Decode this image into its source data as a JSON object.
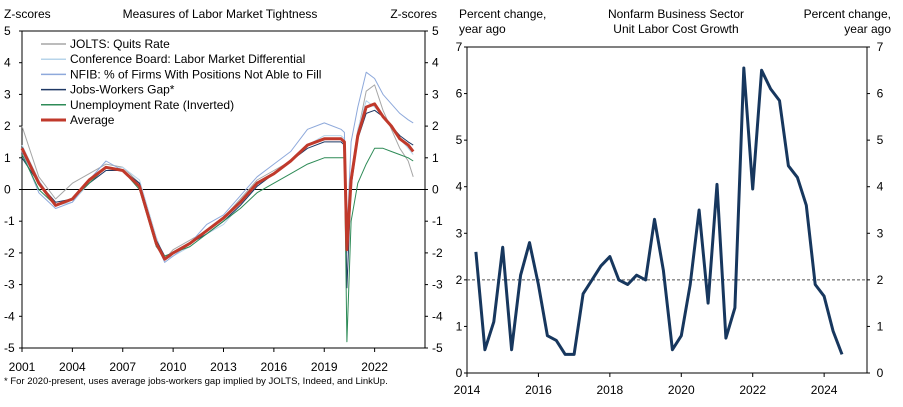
{
  "chart_data": [
    {
      "type": "line",
      "title": "Measures of Labor Market Tightness",
      "ylabel_left": "Z-scores",
      "ylabel_right": "Z-scores",
      "xlim": [
        2001,
        2025
      ],
      "ylim": [
        -5,
        5
      ],
      "yticks": [
        "5",
        "4",
        "3",
        "2",
        "1",
        "0",
        "-1",
        "-2",
        "-3",
        "-4",
        "-5"
      ],
      "xticks": [
        "2001",
        "2004",
        "2007",
        "2010",
        "2013",
        "2016",
        "2019",
        "2022"
      ],
      "legend_position": "top-left",
      "footnote": "* For 2020-present, uses average jobs-workers gap implied by JOLTS, Indeed, and LinkUp.",
      "colors": {
        "quits": "#a6a6a6",
        "conference": "#b7d4ea",
        "nfib": "#8ea9db",
        "gap": "#1f3864",
        "unemp": "#2e8b57",
        "avg": "#c0392b"
      },
      "series": [
        {
          "name": "JOLTS: Quits Rate",
          "key": "quits",
          "x": [
            2001,
            2002,
            2003,
            2004,
            2005,
            2006,
            2007,
            2008,
            2009,
            2009.5,
            2010,
            2011,
            2012,
            2013,
            2014,
            2015,
            2016,
            2017,
            2018,
            2019,
            2020,
            2020.2,
            2020.35,
            2020.6,
            2021,
            2021.5,
            2022,
            2022.5,
            2023,
            2023.5,
            2024,
            2024.3
          ],
          "y": [
            2.0,
            0.4,
            -0.3,
            0.2,
            0.5,
            0.8,
            0.7,
            0.2,
            -1.8,
            -2.2,
            -1.9,
            -1.6,
            -1.3,
            -0.9,
            -0.3,
            0.3,
            0.6,
            0.9,
            1.4,
            1.6,
            1.6,
            1.5,
            -1.8,
            0.4,
            1.8,
            3.1,
            3.3,
            2.5,
            1.9,
            1.3,
            0.9,
            0.4
          ]
        },
        {
          "name": "Conference Board: Labor Market Differential",
          "key": "conference",
          "x": [
            2001,
            2002,
            2003,
            2004,
            2005,
            2006,
            2007,
            2008,
            2009,
            2009.5,
            2010,
            2011,
            2012,
            2013,
            2014,
            2015,
            2016,
            2017,
            2018,
            2019,
            2020,
            2020.2,
            2020.35,
            2020.6,
            2021,
            2021.5,
            2022,
            2022.5,
            2023,
            2023.5,
            2024,
            2024.3
          ],
          "y": [
            1.4,
            0.3,
            -0.5,
            -0.4,
            0.2,
            0.6,
            0.7,
            0.3,
            -1.5,
            -2.2,
            -2.1,
            -1.8,
            -1.4,
            -1.1,
            -0.5,
            0.1,
            0.5,
            0.9,
            1.4,
            1.7,
            1.7,
            1.6,
            -2.0,
            0.5,
            1.9,
            2.8,
            2.6,
            2.3,
            2.0,
            1.6,
            1.3,
            1.1
          ]
        },
        {
          "name": "NFIB: % of Firms With Positions Not Able to Fill",
          "key": "nfib",
          "x": [
            2001,
            2002,
            2003,
            2004,
            2005,
            2006,
            2007,
            2008,
            2009,
            2009.5,
            2010,
            2011,
            2012,
            2013,
            2014,
            2015,
            2016,
            2017,
            2018,
            2019,
            2020,
            2020.2,
            2020.35,
            2020.6,
            2021,
            2021.5,
            2022,
            2022.5,
            2023,
            2023.5,
            2024,
            2024.3
          ],
          "y": [
            1.2,
            -0.1,
            -0.6,
            -0.4,
            0.3,
            0.9,
            0.6,
            0.1,
            -1.7,
            -2.3,
            -2.1,
            -1.7,
            -1.1,
            -0.8,
            -0.2,
            0.4,
            0.8,
            1.2,
            1.9,
            2.1,
            1.9,
            1.8,
            -1.5,
            1.5,
            2.6,
            3.7,
            3.5,
            3.0,
            2.7,
            2.4,
            2.2,
            2.1
          ]
        },
        {
          "name": "Jobs-Workers Gap*",
          "key": "gap",
          "x": [
            2001,
            2002,
            2003,
            2004,
            2005,
            2006,
            2007,
            2008,
            2009,
            2009.5,
            2010,
            2011,
            2012,
            2013,
            2014,
            2015,
            2016,
            2017,
            2018,
            2019,
            2020,
            2020.2,
            2020.35,
            2020.6,
            2021,
            2021.5,
            2022,
            2022.5,
            2023,
            2023.5,
            2024,
            2024.3
          ],
          "y": [
            1.0,
            0.2,
            -0.4,
            -0.3,
            0.2,
            0.6,
            0.6,
            0.2,
            -1.6,
            -2.1,
            -2.0,
            -1.7,
            -1.4,
            -1.0,
            -0.5,
            0.1,
            0.5,
            0.9,
            1.3,
            1.5,
            1.5,
            1.4,
            -3.1,
            0.1,
            1.6,
            2.4,
            2.5,
            2.3,
            2.0,
            1.7,
            1.5,
            1.4
          ]
        },
        {
          "name": "Unemployment Rate (Inverted)",
          "key": "unemp",
          "x": [
            2001,
            2002,
            2003,
            2004,
            2005,
            2006,
            2007,
            2008,
            2009,
            2009.5,
            2010,
            2011,
            2012,
            2013,
            2014,
            2015,
            2016,
            2017,
            2018,
            2019,
            2020,
            2020.2,
            2020.35,
            2020.6,
            2021,
            2021.5,
            2022,
            2022.5,
            2023,
            2023.5,
            2024,
            2024.3
          ],
          "y": [
            1.1,
            0.0,
            -0.5,
            -0.3,
            0.2,
            0.7,
            0.6,
            0.0,
            -1.8,
            -2.1,
            -2.0,
            -1.8,
            -1.4,
            -1.0,
            -0.6,
            -0.1,
            0.2,
            0.5,
            0.8,
            1.0,
            1.0,
            1.0,
            -4.8,
            -1.0,
            0.2,
            0.8,
            1.3,
            1.3,
            1.2,
            1.1,
            1.0,
            0.9
          ]
        },
        {
          "name": "Average",
          "key": "avg",
          "x": [
            2001,
            2002,
            2003,
            2004,
            2005,
            2006,
            2007,
            2008,
            2009,
            2009.5,
            2010,
            2011,
            2012,
            2013,
            2014,
            2015,
            2016,
            2017,
            2018,
            2019,
            2020,
            2020.2,
            2020.35,
            2020.6,
            2021,
            2021.5,
            2022,
            2022.5,
            2023,
            2023.5,
            2024,
            2024.3
          ],
          "y": [
            1.3,
            0.2,
            -0.5,
            -0.3,
            0.3,
            0.7,
            0.6,
            0.1,
            -1.7,
            -2.2,
            -2.0,
            -1.7,
            -1.3,
            -0.9,
            -0.4,
            0.2,
            0.5,
            0.9,
            1.4,
            1.6,
            1.6,
            1.5,
            -1.9,
            0.3,
            1.7,
            2.6,
            2.7,
            2.3,
            2.0,
            1.6,
            1.4,
            1.2
          ]
        }
      ]
    },
    {
      "type": "line",
      "title": "Nonfarm Business Sector Unit Labor Cost Growth",
      "ylabel_left": "Percent change, year ago",
      "ylabel_right": "Percent change, year ago",
      "xlim": [
        2014,
        2025.2
      ],
      "ylim": [
        0,
        7
      ],
      "yticks": [
        "7",
        "6",
        "5",
        "4",
        "3",
        "2",
        "1",
        "0"
      ],
      "xticks": [
        "2014",
        "2016",
        "2018",
        "2020",
        "2022",
        "2024"
      ],
      "reference_line": 2,
      "series": [
        {
          "name": "",
          "color": "#17375e",
          "x": [
            2014.25,
            2014.5,
            2014.75,
            2015.0,
            2015.25,
            2015.5,
            2015.75,
            2016.0,
            2016.25,
            2016.5,
            2016.75,
            2017.0,
            2017.25,
            2017.5,
            2017.75,
            2018.0,
            2018.25,
            2018.5,
            2018.75,
            2019.0,
            2019.25,
            2019.5,
            2019.75,
            2020.0,
            2020.25,
            2020.5,
            2020.75,
            2021.0,
            2021.25,
            2021.5,
            2021.75,
            2022.0,
            2022.25,
            2022.5,
            2022.75,
            2023.0,
            2023.25,
            2023.5,
            2023.75,
            2024.0,
            2024.25,
            2024.5
          ],
          "y": [
            2.6,
            0.5,
            1.1,
            2.7,
            0.5,
            2.1,
            2.8,
            1.9,
            0.8,
            0.7,
            0.4,
            0.4,
            1.7,
            2.0,
            2.3,
            2.5,
            2.0,
            1.9,
            2.1,
            2.0,
            3.3,
            2.2,
            0.5,
            0.8,
            1.9,
            3.5,
            1.5,
            4.05,
            0.75,
            1.4,
            6.55,
            3.95,
            6.5,
            6.1,
            5.85,
            4.45,
            4.2,
            3.6,
            1.9,
            1.65,
            0.9,
            0.4
          ]
        }
      ]
    }
  ]
}
